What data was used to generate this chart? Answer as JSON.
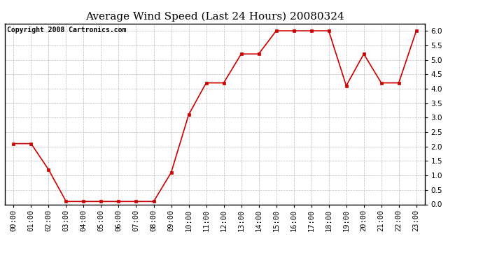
{
  "title": "Average Wind Speed (Last 24 Hours) 20080324",
  "copyright_text": "Copyright 2008 Cartronics.com",
  "hours": [
    "00:00",
    "01:00",
    "02:00",
    "03:00",
    "04:00",
    "05:00",
    "06:00",
    "07:00",
    "08:00",
    "09:00",
    "10:00",
    "11:00",
    "12:00",
    "13:00",
    "14:00",
    "15:00",
    "16:00",
    "17:00",
    "18:00",
    "19:00",
    "20:00",
    "21:00",
    "22:00",
    "23:00"
  ],
  "values": [
    2.1,
    2.1,
    1.2,
    0.1,
    0.1,
    0.1,
    0.1,
    0.1,
    0.1,
    1.1,
    3.1,
    4.2,
    4.2,
    5.2,
    5.2,
    6.0,
    6.0,
    6.0,
    6.0,
    4.1,
    5.2,
    4.2,
    4.2,
    6.0
  ],
  "ylim": [
    0.0,
    6.25
  ],
  "yticks": [
    0.0,
    0.5,
    1.0,
    1.5,
    2.0,
    2.5,
    3.0,
    3.5,
    4.0,
    4.5,
    5.0,
    5.5,
    6.0
  ],
  "line_color": "#cc0000",
  "marker": "s",
  "marker_size": 3,
  "bg_color": "#ffffff",
  "plot_bg_color": "#ffffff",
  "grid_color": "#bbbbbb",
  "title_fontsize": 11,
  "copyright_fontsize": 7,
  "tick_fontsize": 7.5
}
